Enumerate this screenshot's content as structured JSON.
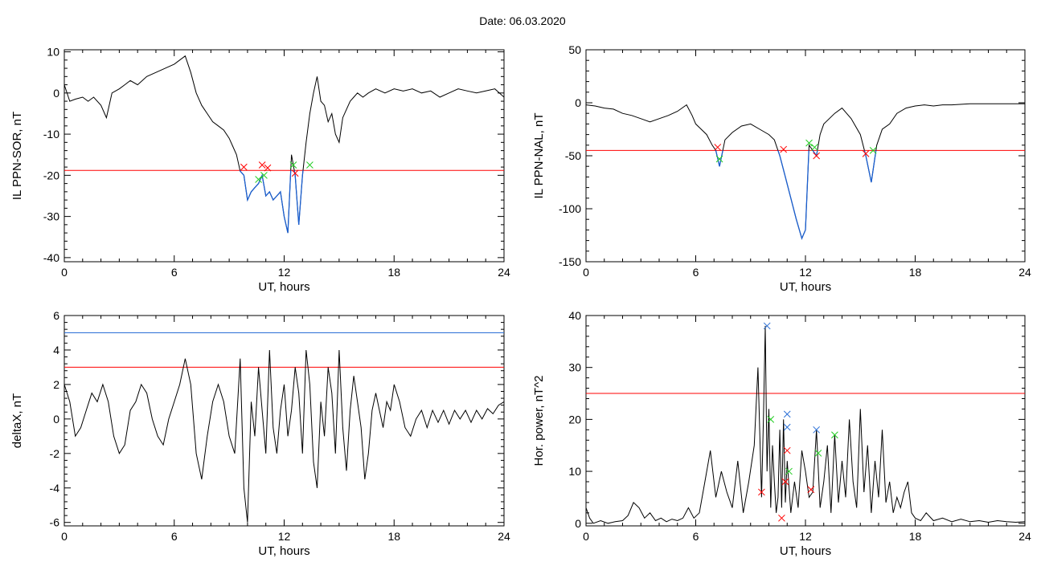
{
  "page": {
    "title": "Date:  06.03.2020"
  },
  "colors": {
    "trace": "#000000",
    "threshold": "#ff0000",
    "threshold2": "#2a6fd6",
    "below": "#1a5fd0",
    "cross_red": "#ff0000",
    "cross_green": "#22cc22",
    "cross_blue": "#2a6fd6"
  },
  "chart_data": [
    {
      "type": "line",
      "xlabel": "UT, hours",
      "ylabel": "IL PPN-SOR, nT",
      "xlim": [
        0,
        24
      ],
      "ylim": [
        -41,
        10.5
      ],
      "xticks": [
        0,
        6,
        12,
        18,
        24
      ],
      "yticks": [
        -40,
        -30,
        -20,
        -10,
        0,
        10
      ],
      "thresholds": [
        {
          "y": -18.8,
          "color": "#ff0000"
        }
      ],
      "highlight_below": -18.8,
      "series": [
        {
          "x": [
            0,
            0.3,
            0.6,
            1,
            1.3,
            1.6,
            2,
            2.3,
            2.6,
            3,
            3.3,
            3.6,
            4,
            4.5,
            5,
            5.5,
            6,
            6.3,
            6.6,
            6.9,
            7.2,
            7.5,
            7.8,
            8.1,
            8.4,
            8.7,
            9,
            9.2,
            9.4,
            9.6,
            9.8,
            10,
            10.2,
            10.4,
            10.6,
            10.8,
            11,
            11.2,
            11.4,
            11.6,
            11.8,
            12,
            12.2,
            12.4,
            12.6,
            12.8,
            13,
            13.2,
            13.4,
            13.6,
            13.8,
            14,
            14.2,
            14.4,
            14.6,
            14.8,
            15,
            15.2,
            15.4,
            15.6,
            15.8,
            16,
            16.3,
            16.6,
            17,
            17.5,
            18,
            18.5,
            19,
            19.5,
            20,
            20.5,
            21,
            21.5,
            22,
            22.5,
            23,
            23.5,
            24
          ],
          "y": [
            2,
            -2,
            -1.5,
            -1,
            -2,
            -1,
            -3,
            -6,
            0,
            1,
            2,
            3,
            2,
            4,
            5,
            6,
            7,
            8,
            9,
            5,
            0,
            -3,
            -5,
            -7,
            -8,
            -9,
            -11,
            -13,
            -15,
            -19,
            -20,
            -26,
            -24,
            -23,
            -22,
            -20,
            -25,
            -24,
            -26,
            -25,
            -24,
            -30,
            -34,
            -15,
            -20,
            -32,
            -20,
            -12,
            -5,
            0,
            4,
            -2,
            -3,
            -7,
            -5,
            -10,
            -12,
            -6,
            -4,
            -2,
            -1,
            0,
            -1,
            0,
            1,
            0,
            1,
            0.5,
            1,
            0,
            0.5,
            -1,
            0,
            1,
            0.5,
            0,
            0.5,
            1,
            -1
          ]
        }
      ],
      "markers": [
        {
          "x": 9.8,
          "y": -18,
          "color": "#ff0000"
        },
        {
          "x": 10.8,
          "y": -17.5,
          "color": "#ff0000"
        },
        {
          "x": 11.1,
          "y": -18.2,
          "color": "#ff0000"
        },
        {
          "x": 12.6,
          "y": -19.5,
          "color": "#ff0000"
        },
        {
          "x": 10.6,
          "y": -21,
          "color": "#22cc22"
        },
        {
          "x": 10.9,
          "y": -20,
          "color": "#22cc22"
        },
        {
          "x": 12.5,
          "y": -17.5,
          "color": "#22cc22"
        },
        {
          "x": 13.4,
          "y": -17.5,
          "color": "#22cc22"
        }
      ]
    },
    {
      "type": "line",
      "xlabel": "UT, hours",
      "ylabel": "IL PPN-NAL, nT",
      "xlim": [
        0,
        24
      ],
      "ylim": [
        -150,
        50
      ],
      "xticks": [
        0,
        6,
        12,
        18,
        24
      ],
      "yticks": [
        -150,
        -100,
        -50,
        0,
        50
      ],
      "thresholds": [
        {
          "y": -45,
          "color": "#ff0000"
        }
      ],
      "highlight_below": -45,
      "series": [
        {
          "x": [
            0,
            0.5,
            1,
            1.5,
            2,
            2.5,
            3,
            3.5,
            4,
            4.5,
            5,
            5.5,
            5.8,
            6,
            6.3,
            6.6,
            6.9,
            7.1,
            7.3,
            7.6,
            8,
            8.5,
            9,
            9.5,
            10,
            10.3,
            10.6,
            10.9,
            11.2,
            11.5,
            11.8,
            12,
            12.2,
            12.4,
            12.6,
            12.8,
            13,
            13.3,
            13.6,
            14,
            14.5,
            15,
            15.3,
            15.6,
            15.9,
            16.2,
            16.6,
            17,
            17.5,
            18,
            18.5,
            19,
            19.5,
            20,
            21,
            22,
            23,
            24
          ],
          "y": [
            -2,
            -3,
            -5,
            -6,
            -10,
            -12,
            -15,
            -18,
            -15,
            -12,
            -8,
            -2,
            -12,
            -20,
            -25,
            -30,
            -40,
            -45,
            -60,
            -35,
            -28,
            -22,
            -20,
            -25,
            -30,
            -35,
            -50,
            -70,
            -90,
            -110,
            -128,
            -120,
            -40,
            -45,
            -50,
            -30,
            -20,
            -15,
            -10,
            -5,
            -15,
            -30,
            -50,
            -75,
            -40,
            -25,
            -20,
            -10,
            -5,
            -3,
            -2,
            -3,
            -2,
            -2,
            -1,
            -1,
            -1,
            -1
          ]
        }
      ],
      "markers": [
        {
          "x": 7.2,
          "y": -42,
          "color": "#ff0000"
        },
        {
          "x": 10.8,
          "y": -44,
          "color": "#ff0000"
        },
        {
          "x": 12.6,
          "y": -50,
          "color": "#ff0000"
        },
        {
          "x": 15.3,
          "y": -48,
          "color": "#ff0000"
        },
        {
          "x": 7.3,
          "y": -53,
          "color": "#22cc22"
        },
        {
          "x": 12.2,
          "y": -38,
          "color": "#22cc22"
        },
        {
          "x": 12.5,
          "y": -42,
          "color": "#22cc22"
        },
        {
          "x": 15.7,
          "y": -45,
          "color": "#22cc22"
        }
      ]
    },
    {
      "type": "line",
      "xlabel": "UT, hours",
      "ylabel": "deltaX, nT",
      "xlim": [
        0,
        24
      ],
      "ylim": [
        -6.2,
        6
      ],
      "xticks": [
        0,
        6,
        12,
        18,
        24
      ],
      "yticks": [
        -6,
        -4,
        -2,
        0,
        2,
        4,
        6
      ],
      "thresholds": [
        {
          "y": 5,
          "color": "#2a6fd6"
        },
        {
          "y": 3,
          "color": "#ff0000"
        }
      ],
      "series": [
        {
          "x": [
            0,
            0.3,
            0.6,
            0.9,
            1.2,
            1.5,
            1.8,
            2.1,
            2.4,
            2.7,
            3,
            3.3,
            3.6,
            3.9,
            4.2,
            4.5,
            4.8,
            5.1,
            5.4,
            5.7,
            6,
            6.3,
            6.6,
            6.9,
            7.2,
            7.5,
            7.8,
            8.1,
            8.4,
            8.7,
            9,
            9.3,
            9.6,
            9.8,
            10,
            10.2,
            10.4,
            10.6,
            10.8,
            11,
            11.2,
            11.4,
            11.6,
            11.8,
            12,
            12.2,
            12.4,
            12.6,
            12.8,
            13,
            13.2,
            13.4,
            13.6,
            13.8,
            14,
            14.2,
            14.4,
            14.6,
            14.8,
            15,
            15.2,
            15.4,
            15.6,
            15.8,
            16,
            16.2,
            16.4,
            16.6,
            16.8,
            17,
            17.2,
            17.4,
            17.6,
            17.8,
            18,
            18.3,
            18.6,
            18.9,
            19.2,
            19.5,
            19.8,
            20.1,
            20.4,
            20.7,
            21,
            21.3,
            21.6,
            21.9,
            22.2,
            22.5,
            22.8,
            23.1,
            23.4,
            23.7,
            24
          ],
          "y": [
            2,
            1,
            -1,
            -0.5,
            0.5,
            1.5,
            1,
            2,
            1,
            -1,
            -2,
            -1.5,
            0.5,
            1,
            2,
            1.5,
            0,
            -1,
            -1.5,
            0,
            1,
            2,
            3.5,
            2,
            -2,
            -3.5,
            -1,
            1,
            2,
            1,
            -1,
            -2,
            3.5,
            -4,
            -6,
            1,
            -1,
            3,
            0.5,
            -2,
            4,
            -0.5,
            -2,
            0.5,
            2,
            -1,
            0.5,
            3,
            1.5,
            -2,
            4,
            2,
            -2.5,
            -4,
            1,
            -1,
            3,
            1.5,
            -2,
            4,
            -0.5,
            -3,
            0.5,
            2.5,
            1,
            -0.5,
            -3.5,
            -2,
            0.5,
            1.5,
            0.5,
            -0.5,
            1,
            0.5,
            2,
            1,
            -0.5,
            -1,
            0,
            0.5,
            -0.5,
            0.5,
            -0.2,
            0.5,
            -0.3,
            0.5,
            0,
            0.5,
            -0.2,
            0.5,
            0,
            0.6,
            0.3,
            0.8,
            1
          ]
        }
      ],
      "markers": []
    },
    {
      "type": "line",
      "xlabel": "UT, hours",
      "ylabel": "Hor. power, nT^2",
      "xlim": [
        0,
        24
      ],
      "ylim": [
        -0.5,
        40
      ],
      "xticks": [
        0,
        6,
        12,
        18,
        24
      ],
      "yticks": [
        0,
        10,
        20,
        30,
        40
      ],
      "thresholds": [
        {
          "y": 25,
          "color": "#ff0000"
        }
      ],
      "series": [
        {
          "x": [
            0,
            0.2,
            0.4,
            0.8,
            1.2,
            1.6,
            2,
            2.3,
            2.6,
            2.9,
            3.2,
            3.5,
            3.8,
            4.1,
            4.4,
            4.7,
            5,
            5.3,
            5.6,
            5.9,
            6.2,
            6.5,
            6.8,
            7.1,
            7.4,
            7.7,
            8,
            8.3,
            8.6,
            8.9,
            9.2,
            9.4,
            9.6,
            9.7,
            9.8,
            9.9,
            10,
            10.1,
            10.2,
            10.3,
            10.4,
            10.5,
            10.6,
            10.7,
            10.8,
            10.9,
            11,
            11.2,
            11.4,
            11.6,
            11.8,
            12,
            12.2,
            12.4,
            12.6,
            12.8,
            13,
            13.2,
            13.4,
            13.6,
            13.8,
            14,
            14.2,
            14.4,
            14.6,
            14.8,
            15,
            15.2,
            15.4,
            15.6,
            15.8,
            16,
            16.2,
            16.4,
            16.6,
            16.8,
            17,
            17.2,
            17.4,
            17.6,
            17.8,
            18,
            18.3,
            18.6,
            19,
            19.5,
            20,
            20.5,
            21,
            21.5,
            22,
            22.5,
            23,
            23.5,
            24
          ],
          "y": [
            3,
            1,
            0,
            0.5,
            0,
            0.3,
            0.5,
            1.5,
            4,
            3,
            1,
            2,
            0.5,
            1,
            0.3,
            0.8,
            0.5,
            1,
            3,
            1,
            2,
            8,
            14,
            5,
            10,
            6,
            3,
            12,
            2,
            8,
            15,
            30,
            5,
            20,
            38,
            10,
            22,
            3,
            15,
            8,
            2,
            5,
            18,
            3,
            20,
            4,
            12,
            2,
            8,
            3,
            14,
            10,
            5,
            6,
            18,
            3,
            8,
            15,
            2,
            17,
            4,
            12,
            5,
            20,
            8,
            3,
            22,
            6,
            15,
            2,
            12,
            5,
            18,
            4,
            8,
            2,
            5,
            3,
            6,
            8,
            2,
            1,
            0.5,
            2,
            0.5,
            1,
            0.3,
            0.8,
            0.3,
            0.5,
            0.2,
            0.5,
            0.3,
            0.2,
            0.3
          ]
        }
      ],
      "markers": [
        {
          "x": 9.6,
          "y": 6,
          "color": "#ff0000"
        },
        {
          "x": 10.7,
          "y": 1,
          "color": "#ff0000"
        },
        {
          "x": 10.9,
          "y": 8,
          "color": "#ff0000"
        },
        {
          "x": 11.0,
          "y": 14,
          "color": "#ff0000"
        },
        {
          "x": 12.3,
          "y": 6.5,
          "color": "#ff0000"
        },
        {
          "x": 10.1,
          "y": 20,
          "color": "#22cc22"
        },
        {
          "x": 11.1,
          "y": 10,
          "color": "#22cc22"
        },
        {
          "x": 12.7,
          "y": 13.5,
          "color": "#22cc22"
        },
        {
          "x": 13.6,
          "y": 17,
          "color": "#22cc22"
        },
        {
          "x": 9.9,
          "y": 38,
          "color": "#2a6fd6"
        },
        {
          "x": 11.0,
          "y": 21,
          "color": "#2a6fd6"
        },
        {
          "x": 11.0,
          "y": 18.5,
          "color": "#2a6fd6"
        },
        {
          "x": 12.6,
          "y": 18,
          "color": "#2a6fd6"
        }
      ]
    }
  ]
}
